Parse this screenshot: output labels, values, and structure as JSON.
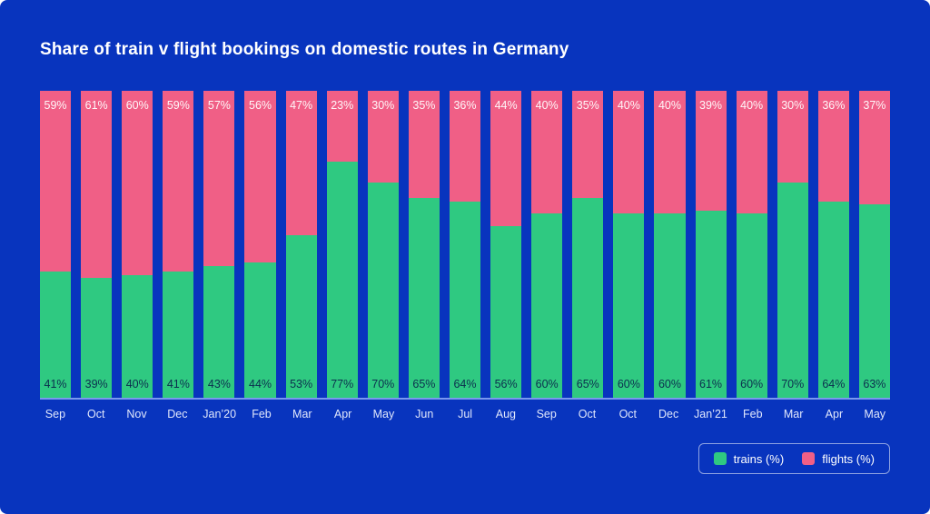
{
  "title": "Share of train v flight bookings on domestic routes in Germany",
  "colors": {
    "background": "#0834BE",
    "trains": "#2FC981",
    "flights": "#F05F86",
    "flight_label": "rgba(255,255,255,0.95)",
    "train_label": "#0C2E4E",
    "baseline": "rgba(160,185,255,0.75)"
  },
  "legend": {
    "items": [
      {
        "label": "trains (%)",
        "color": "#2FC981"
      },
      {
        "label": "flights (%)",
        "color": "#F05F86"
      }
    ]
  },
  "chart_data": {
    "type": "bar",
    "stacked": true,
    "orientation": "vertical",
    "title": "Share of train v flight bookings on domestic routes in Germany",
    "xlabel": "",
    "ylabel": "",
    "ylim": [
      0,
      100
    ],
    "grid": false,
    "legend_position": "bottom-right",
    "value_suffix": "%",
    "categories": [
      "Sep",
      "Oct",
      "Nov",
      "Dec",
      "Jan’20",
      "Feb",
      "Mar",
      "Apr",
      "May",
      "Jun",
      "Jul",
      "Aug",
      "Sep",
      "Oct",
      "Oct",
      "Dec",
      "Jan’21",
      "Feb",
      "Mar",
      "Apr",
      "May"
    ],
    "series": [
      {
        "name": "trains (%)",
        "color": "#2FC981",
        "values": [
          41,
          39,
          40,
          41,
          43,
          44,
          53,
          77,
          70,
          65,
          64,
          56,
          60,
          65,
          60,
          60,
          61,
          60,
          70,
          64,
          63
        ]
      },
      {
        "name": "flights (%)",
        "color": "#F05F86",
        "values": [
          59,
          61,
          60,
          59,
          57,
          56,
          47,
          23,
          30,
          35,
          36,
          44,
          40,
          35,
          40,
          40,
          39,
          40,
          30,
          36,
          37
        ]
      }
    ]
  }
}
